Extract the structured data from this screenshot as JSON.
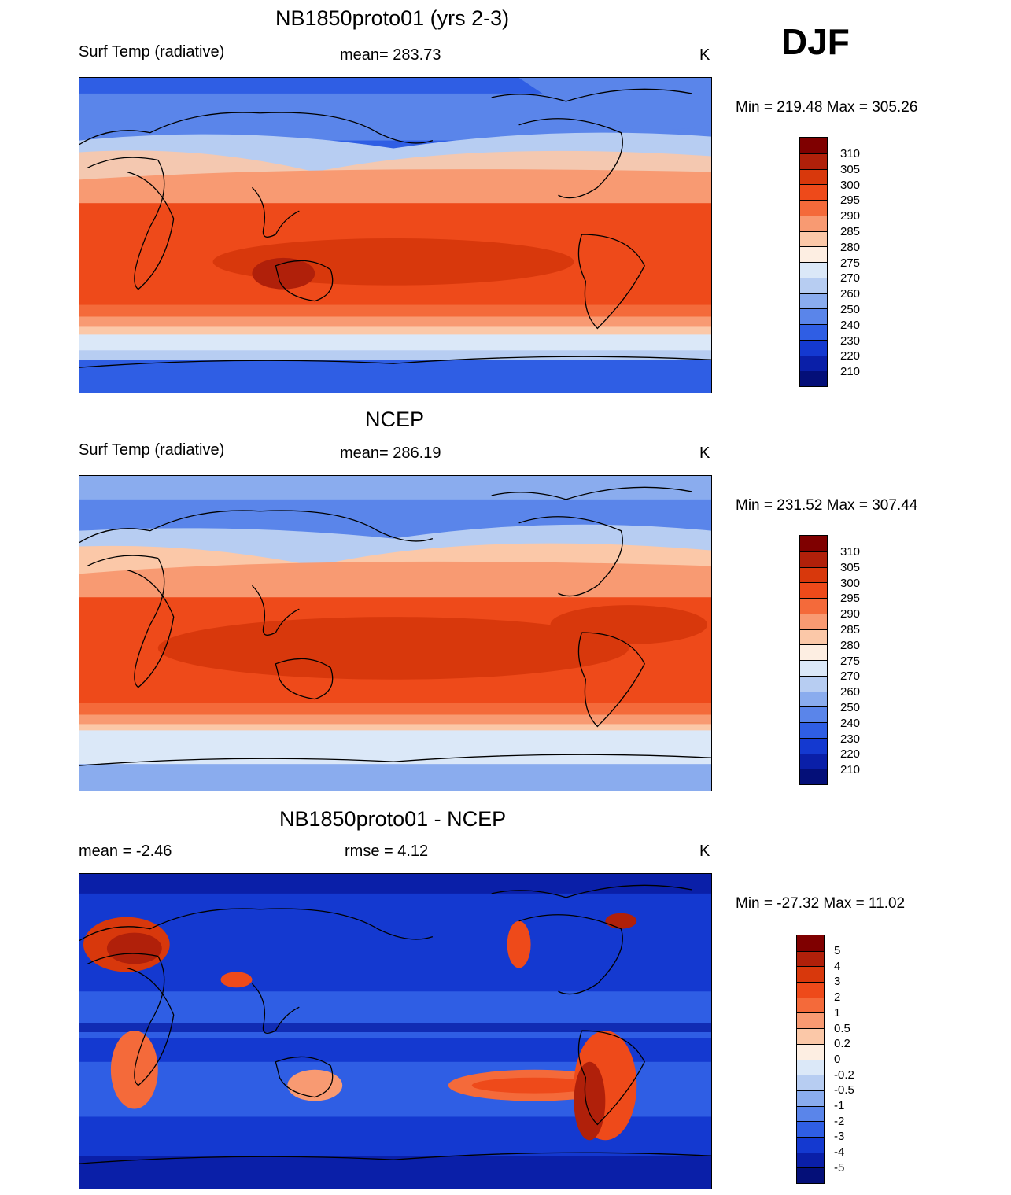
{
  "season": "DJF",
  "panels": [
    {
      "id": "model",
      "title": "NB1850proto01 (yrs 2-3)",
      "left_label": "Surf Temp (radiative)",
      "center_label": "mean= 283.73",
      "units": "K",
      "minmax": "Min = 219.48 Max = 305.26",
      "colorbar_type": "temp"
    },
    {
      "id": "obs",
      "title": "NCEP",
      "left_label": "Surf Temp (radiative)",
      "center_label": "mean= 286.19",
      "units": "K",
      "minmax": "Min = 231.52 Max = 307.44",
      "colorbar_type": "temp"
    },
    {
      "id": "diff",
      "title": "NB1850proto01 - NCEP",
      "left_label": "mean =  -2.46",
      "center_label": "rmse =   4.12",
      "units": "K",
      "minmax": "Min = -27.32 Max =  11.02",
      "colorbar_type": "diff"
    }
  ],
  "colorbars": {
    "temp": {
      "labels": [
        "310",
        "305",
        "300",
        "295",
        "290",
        "285",
        "280",
        "275",
        "270",
        "260",
        "250",
        "240",
        "230",
        "220",
        "210"
      ],
      "colors": [
        "#7f0000",
        "#b0200a",
        "#d8380c",
        "#ee4a1a",
        "#f46a3a",
        "#f89a72",
        "#fbc8a8",
        "#fdeee2",
        "#dbe8f8",
        "#b7cdf2",
        "#8aacee",
        "#5a85ea",
        "#2f5ee4",
        "#1439d0",
        "#0a1fa8",
        "#040f78"
      ]
    },
    "diff": {
      "labels": [
        "5",
        "4",
        "3",
        "2",
        "1",
        "0.5",
        "0.2",
        "0",
        "-0.2",
        "-0.5",
        "-1",
        "-2",
        "-3",
        "-4",
        "-5"
      ],
      "colors": [
        "#7f0000",
        "#b0200a",
        "#d8380c",
        "#ee4a1a",
        "#f46a3a",
        "#f89a72",
        "#fbc8a8",
        "#fdeee2",
        "#dbe8f8",
        "#b7cdf2",
        "#8aacee",
        "#5a85ea",
        "#2f5ee4",
        "#1439d0",
        "#0a1fa8",
        "#040f78"
      ]
    }
  }
}
